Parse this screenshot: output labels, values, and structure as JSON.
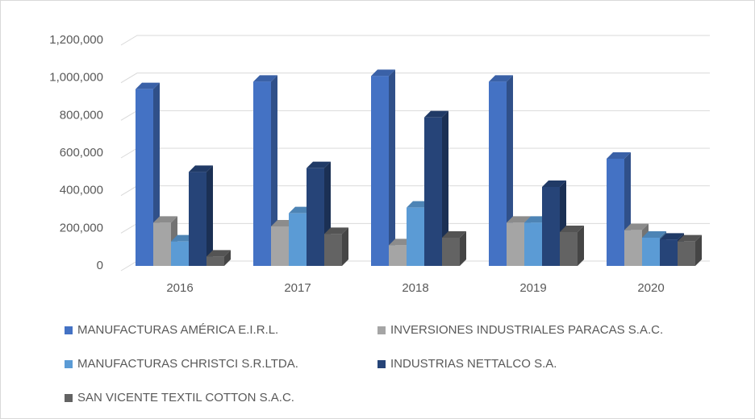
{
  "chart_data": {
    "type": "bar3d",
    "categories": [
      "2016",
      "2017",
      "2018",
      "2019",
      "2020"
    ],
    "series": [
      {
        "name": "MANUFACTURAS AMÉRICA E.I.R.L.",
        "color": "#4472c4",
        "values": [
          940000,
          980000,
          1010000,
          980000,
          570000
        ]
      },
      {
        "name": "INVERSIONES INDUSTRIALES PARACAS S.A.C.",
        "color": "#a5a5a5",
        "values": [
          230000,
          210000,
          110000,
          230000,
          190000
        ]
      },
      {
        "name": "MANUFACTURAS CHRISTCI S.R.LTDA.",
        "color": "#5b9bd5",
        "values": [
          130000,
          280000,
          310000,
          230000,
          150000
        ]
      },
      {
        "name": "INDUSTRIAS NETTALCO S.A.",
        "color": "#264478",
        "values": [
          500000,
          520000,
          790000,
          420000,
          140000
        ]
      },
      {
        "name": "SAN VICENTE TEXTIL COTTON S.A.C.",
        "color": "#636363",
        "values": [
          50000,
          170000,
          150000,
          180000,
          130000
        ]
      }
    ],
    "ylim": [
      0,
      1200000
    ],
    "yticks": [
      0,
      {
        "value": 200000,
        "label": "200,000"
      },
      {
        "value": 400000,
        "label": "400,000"
      },
      {
        "value": 600000,
        "label": "600,000"
      },
      {
        "value": 800000,
        "label": "800,000"
      },
      {
        "value": 1000000,
        "label": "1,000,000"
      },
      {
        "value": 1200000,
        "label": "1,200,000"
      }
    ],
    "grid": true,
    "legend": "bottom"
  }
}
